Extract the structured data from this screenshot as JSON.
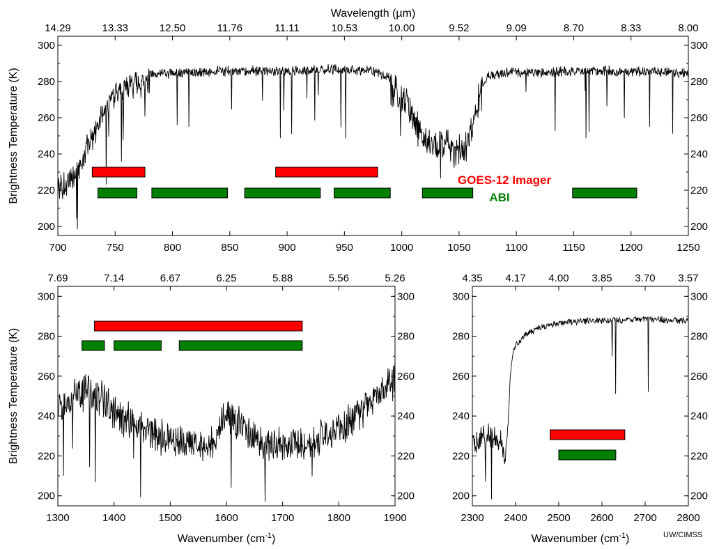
{
  "credit": "UW/CIMSS",
  "legend": {
    "goes_label": "GOES-12 Imager",
    "abi_label": "ABI",
    "goes_color": "#ff0000",
    "abi_color": "#007f00"
  },
  "chart_data": [
    {
      "type": "line",
      "panel": "top",
      "top_axis_label": "Wavelength (µm)",
      "top_tick_labels": [
        "14.29",
        "13.33",
        "12.50",
        "11.76",
        "11.11",
        "10.53",
        "10.00",
        "9.52",
        "9.09",
        "8.70",
        "8.33",
        "8.00"
      ],
      "ylabel": "Brightness Temperature (K)",
      "xlim": [
        700,
        1250
      ],
      "ylim": [
        195,
        305
      ],
      "xticks": [
        700,
        750,
        800,
        850,
        900,
        950,
        1000,
        1050,
        1100,
        1150,
        1200,
        1250
      ],
      "yticks": [
        200,
        220,
        240,
        260,
        280,
        300
      ],
      "spectrum_baseline": [
        [
          700,
          225
        ],
        [
          715,
          235
        ],
        [
          725,
          248
        ],
        [
          735,
          262
        ],
        [
          745,
          275
        ],
        [
          755,
          283
        ],
        [
          770,
          286
        ],
        [
          800,
          287
        ],
        [
          850,
          288
        ],
        [
          900,
          288
        ],
        [
          950,
          289
        ],
        [
          975,
          288
        ],
        [
          990,
          284
        ],
        [
          1000,
          278
        ],
        [
          1010,
          268
        ],
        [
          1020,
          255
        ],
        [
          1030,
          250
        ],
        [
          1040,
          255
        ],
        [
          1048,
          248
        ],
        [
          1055,
          252
        ],
        [
          1060,
          262
        ],
        [
          1065,
          275
        ],
        [
          1075,
          285
        ],
        [
          1090,
          287
        ],
        [
          1150,
          288
        ],
        [
          1200,
          288
        ],
        [
          1250,
          287
        ]
      ],
      "goes_bands_cm": [
        [
          730,
          776
        ],
        [
          890,
          979
        ]
      ],
      "abi_bands_cm": [
        [
          735,
          769
        ],
        [
          782,
          848
        ],
        [
          863,
          929
        ],
        [
          941,
          990
        ],
        [
          1018,
          1062
        ],
        [
          1149,
          1205
        ]
      ]
    },
    {
      "type": "line",
      "panel": "bottom-left",
      "top_tick_labels": [
        "7.69",
        "7.14",
        "6.67",
        "6.25",
        "5.88",
        "5.56",
        "5.26"
      ],
      "xlabel": "Wavenumber (cm-1)",
      "ylabel": "Brightness Temperature (K)",
      "xlim": [
        1300,
        1900
      ],
      "ylim": [
        195,
        305
      ],
      "xticks": [
        1300,
        1400,
        1500,
        1600,
        1700,
        1800,
        1900
      ],
      "yticks": [
        200,
        220,
        240,
        260,
        280,
        300
      ],
      "spectrum_baseline": [
        [
          1300,
          250
        ],
        [
          1330,
          258
        ],
        [
          1360,
          260
        ],
        [
          1400,
          250
        ],
        [
          1450,
          240
        ],
        [
          1500,
          235
        ],
        [
          1550,
          232
        ],
        [
          1580,
          235
        ],
        [
          1600,
          250
        ],
        [
          1620,
          245
        ],
        [
          1650,
          235
        ],
        [
          1700,
          232
        ],
        [
          1750,
          235
        ],
        [
          1800,
          240
        ],
        [
          1840,
          250
        ],
        [
          1870,
          258
        ],
        [
          1900,
          265
        ]
      ],
      "goes_bands_cm": [
        [
          1365,
          1735
        ]
      ],
      "abi_bands_cm": [
        [
          1343,
          1383
        ],
        [
          1400,
          1484
        ],
        [
          1516,
          1735
        ]
      ]
    },
    {
      "type": "line",
      "panel": "bottom-right",
      "top_tick_labels": [
        "4.35",
        "4.17",
        "4.00",
        "3.85",
        "3.70",
        "3.57"
      ],
      "xlabel": "Wavenumber (cm-1)",
      "xlim": [
        2300,
        2800
      ],
      "ylim": [
        195,
        305
      ],
      "xticks": [
        2300,
        2400,
        2500,
        2600,
        2700,
        2800
      ],
      "yticks": [
        200,
        220,
        240,
        260,
        280,
        300
      ],
      "spectrum_baseline": [
        [
          2300,
          232
        ],
        [
          2340,
          235
        ],
        [
          2365,
          232
        ],
        [
          2375,
          222
        ],
        [
          2382,
          235
        ],
        [
          2388,
          262
        ],
        [
          2395,
          275
        ],
        [
          2420,
          282
        ],
        [
          2460,
          286
        ],
        [
          2500,
          288
        ],
        [
          2550,
          289
        ],
        [
          2600,
          289
        ],
        [
          2700,
          290
        ],
        [
          2800,
          289
        ]
      ],
      "goes_bands_cm": [
        [
          2480,
          2653
        ]
      ],
      "abi_bands_cm": [
        [
          2500,
          2632
        ]
      ]
    }
  ]
}
